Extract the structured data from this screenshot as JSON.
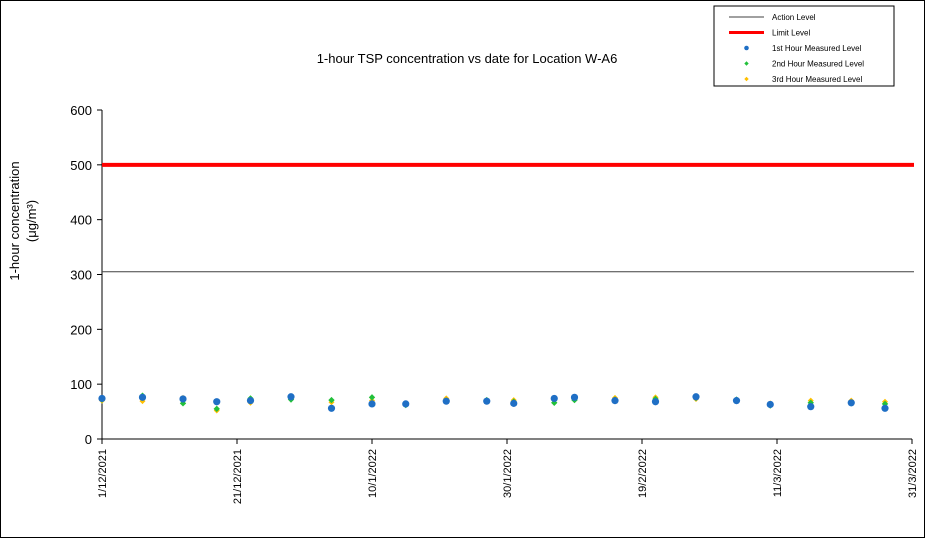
{
  "chart_data": {
    "type": "scatter",
    "title": "1-hour TSP concentration vs date for Location  W-A6",
    "ylabel_line1": "1-hour concentration",
    "ylabel_line2": "(μg/m³)",
    "xlabel": "",
    "ylim": [
      0,
      600
    ],
    "yticks": [
      0,
      100,
      200,
      300,
      400,
      500,
      600
    ],
    "xlim": [
      "2021-12-01",
      "2022-03-31"
    ],
    "xticks": [
      {
        "date": "2021-12-01",
        "label": "1/12/2021"
      },
      {
        "date": "2021-12-21",
        "label": "21/12/2021"
      },
      {
        "date": "2022-01-10",
        "label": "10/1/2022"
      },
      {
        "date": "2022-01-30",
        "label": "30/1/2022"
      },
      {
        "date": "2022-02-19",
        "label": "19/2/2022"
      },
      {
        "date": "2022-03-11",
        "label": "11/3/2022"
      },
      {
        "date": "2022-03-31",
        "label": "31/3/2022"
      }
    ],
    "grid": false,
    "legend_position": "top-right",
    "reference_lines": [
      {
        "name": "Action Level",
        "value": 305,
        "color": "#404040"
      },
      {
        "name": "Limit Level",
        "value": 500,
        "color": "#ff0000"
      }
    ],
    "x": [
      "2021-12-01",
      "2021-12-07",
      "2021-12-13",
      "2021-12-18",
      "2021-12-23",
      "2021-12-29",
      "2022-01-04",
      "2022-01-10",
      "2022-01-15",
      "2022-01-21",
      "2022-01-27",
      "2022-01-31",
      "2022-02-06",
      "2022-02-09",
      "2022-02-15",
      "2022-02-21",
      "2022-02-27",
      "2022-03-05",
      "2022-03-10",
      "2022-03-16",
      "2022-03-22",
      "2022-03-27"
    ],
    "series": [
      {
        "name": "1st Hour Measured Level",
        "color": "#1f6fc5",
        "values": [
          74,
          76,
          73,
          68,
          70,
          77,
          56,
          64,
          64,
          69,
          69,
          65,
          74,
          76,
          70,
          68,
          77,
          70,
          63,
          59,
          66,
          56
        ]
      },
      {
        "name": "2nd Hour Measured Level",
        "color": "#22c03a",
        "values": [
          72,
          79,
          65,
          55,
          74,
          72,
          71,
          76,
          62,
          70,
          71,
          68,
          66,
          71,
          72,
          73,
          75,
          72,
          61,
          66,
          65,
          64
        ]
      },
      {
        "name": "3rd Hour Measured Level",
        "color": "#ffc000",
        "values": [
          70,
          69,
          75,
          52,
          66,
          74,
          67,
          70,
          62,
          74,
          68,
          71,
          71,
          72,
          75,
          76,
          73,
          69,
          65,
          70,
          70,
          68
        ]
      }
    ]
  }
}
